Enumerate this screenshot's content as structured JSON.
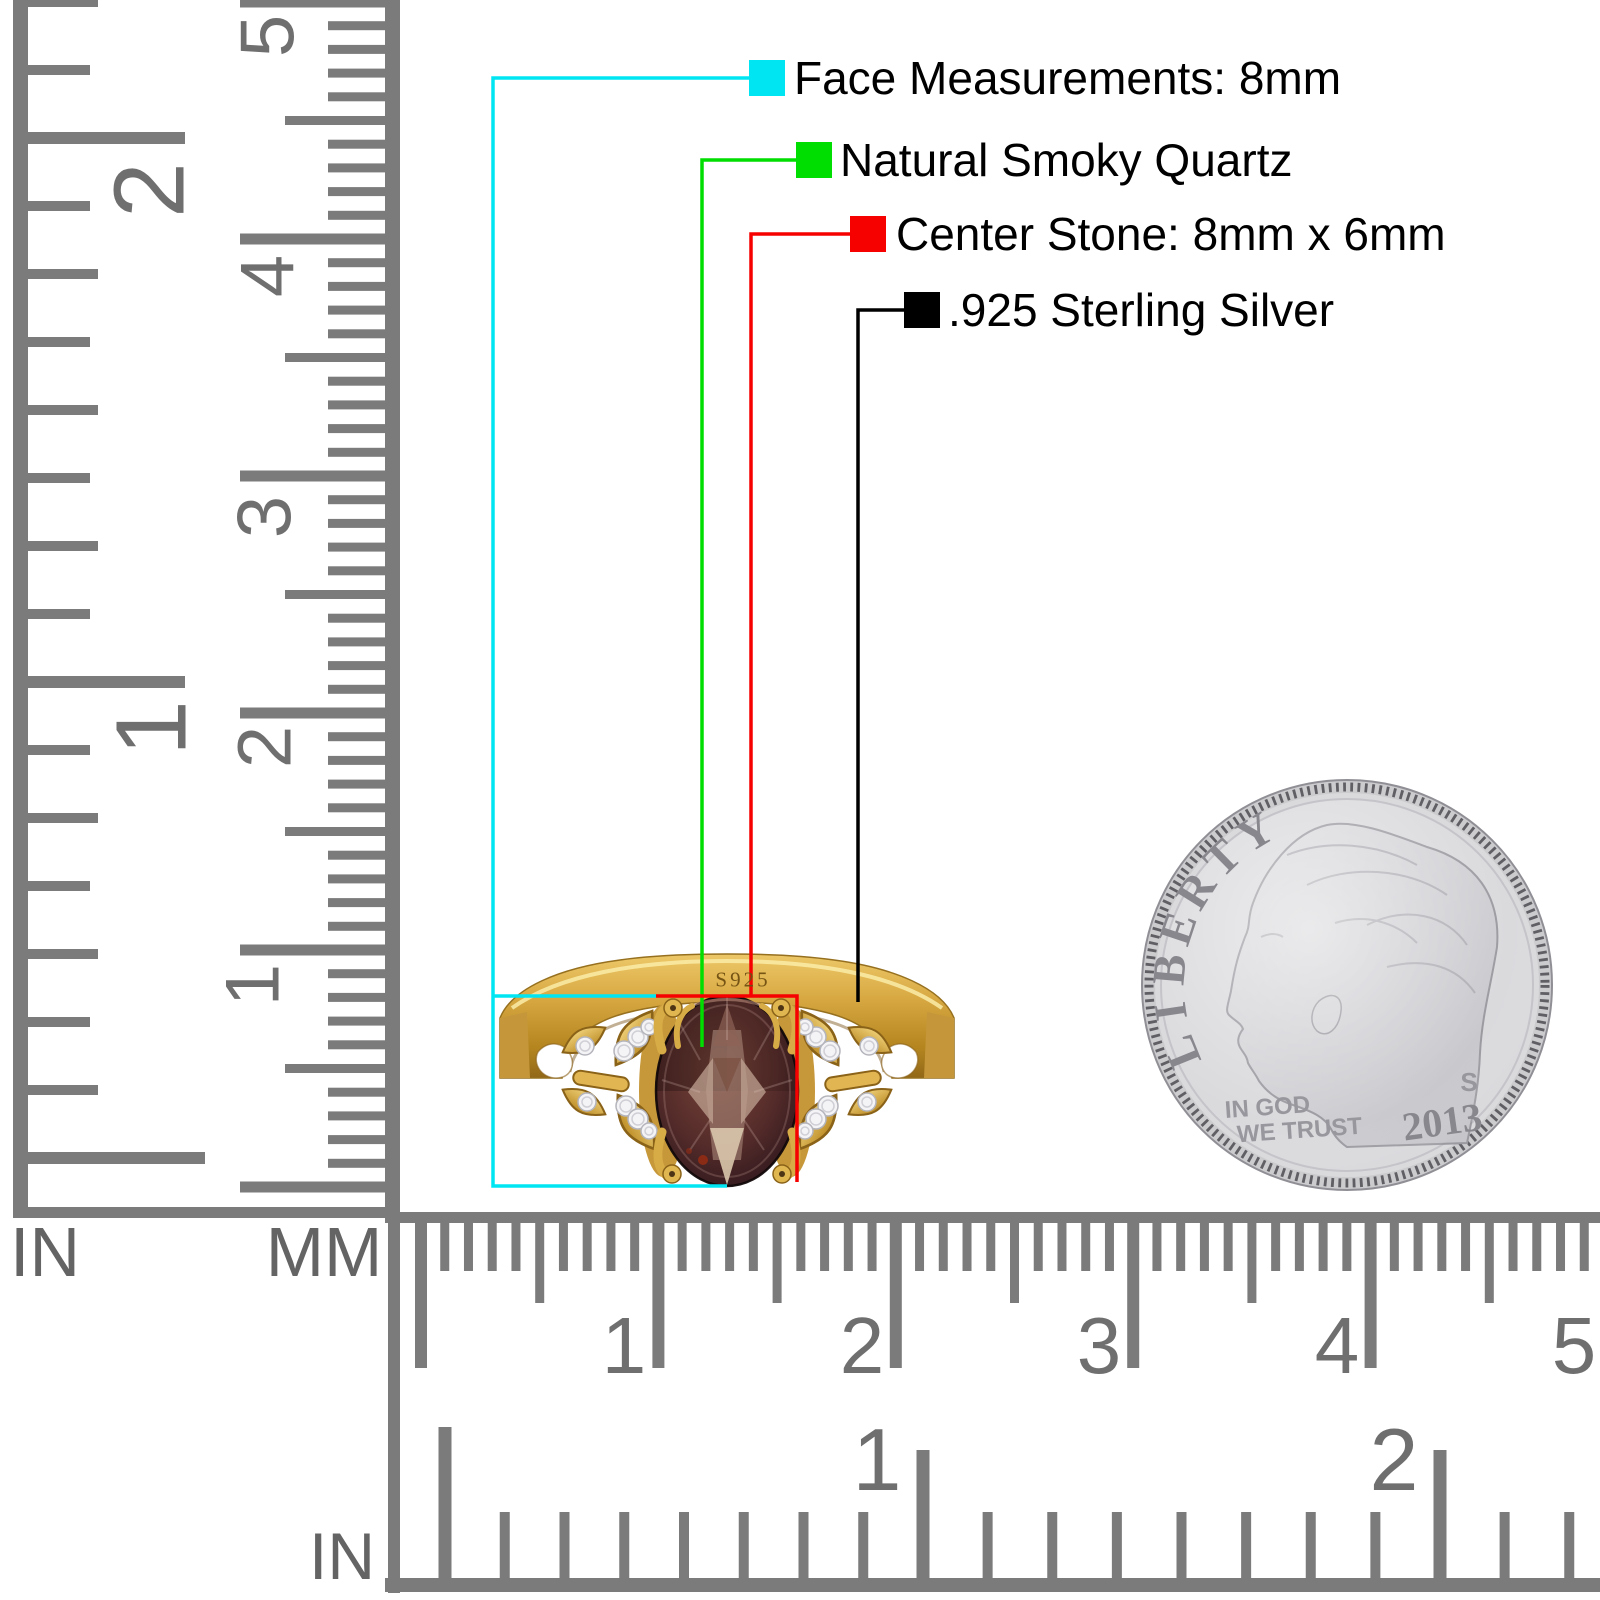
{
  "callouts": {
    "items": [
      {
        "label": "Face Measurements: 8mm",
        "color": "#00e5f2"
      },
      {
        "label": "Natural Smoky Quartz",
        "color": "#00dd00"
      },
      {
        "label": "Center Stone: 8mm x 6mm",
        "color": "#f60000"
      },
      {
        "label": ".925 Sterling Silver",
        "color": "#000000"
      }
    ]
  },
  "ring": {
    "engraving": "S925",
    "band_color": "#d2a23c",
    "stone_color": "#56302c",
    "accent_stone_color": "#f4f4f6"
  },
  "coin": {
    "legend": "LIBERTY",
    "motto_line1": "IN GOD",
    "motto_line2": "WE TRUST",
    "mint_mark": "S",
    "year": "2013",
    "metal_color": "#d8d8db"
  },
  "rulers": {
    "vertical": {
      "in_label": "IN",
      "mm_label": "MM",
      "in_numbers": [
        "1",
        "2"
      ],
      "mm_numbers": [
        "1",
        "2",
        "3",
        "4",
        "5"
      ]
    },
    "horizontal": {
      "in_label": "IN",
      "mm_numbers": [
        "1",
        "2",
        "3",
        "4",
        "5"
      ],
      "in_numbers": [
        "1",
        "2"
      ]
    }
  }
}
